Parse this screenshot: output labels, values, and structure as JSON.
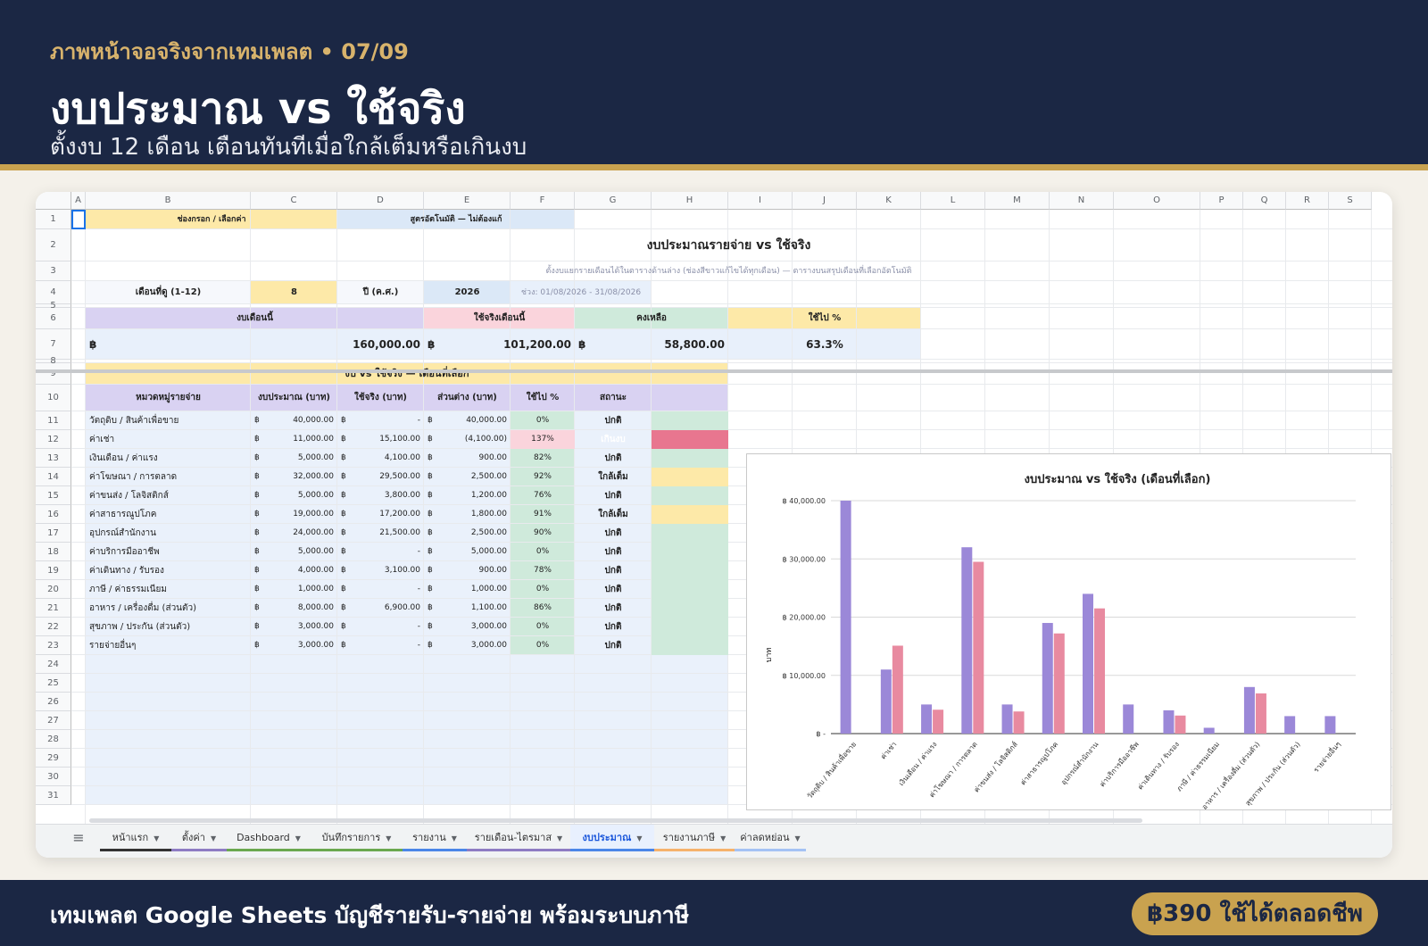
{
  "banner": {
    "subtitle": "ภาพหน้าจอจริงจากเทมเพลต  •  07/09",
    "title": "งบประมาณ vs ใช้จริง",
    "description": "ตั้งงบ 12 เดือน เตือนทันทีเมื่อใกล้เต็มหรือเกินงบ"
  },
  "footer": {
    "text": "เทมเพลต Google Sheets บัญชีรายรับ-รายจ่าย พร้อมระบบภาษี",
    "price": "฿390 ใช้ได้ตลอดชีพ"
  },
  "sheet": {
    "col_headers": [
      "A",
      "B",
      "C",
      "D",
      "E",
      "F",
      "G",
      "H",
      "I",
      "J",
      "K",
      "L",
      "M",
      "N",
      "O",
      "P",
      "Q",
      "R",
      "S"
    ],
    "row_numbers": [
      "1",
      "2",
      "3",
      "4",
      "5",
      "6",
      "7",
      "8",
      "9",
      "10",
      "11",
      "12",
      "13",
      "14",
      "15",
      "16",
      "17",
      "18",
      "19",
      "20",
      "21",
      "22",
      "23",
      "24",
      "25",
      "26",
      "27",
      "28",
      "29",
      "30",
      "31"
    ],
    "legend_input": "ช่องกรอก / เลือกค่า",
    "legend_formula": "สูตรอัตโนมัติ — ไม่ต้องแก้",
    "title": "งบประมาณรายจ่าย vs ใช้จริง",
    "note": "ตั้งงบแยกรายเดือนได้ในตารางด้านล่าง (ช่องสีขาวแก้ไขได้ทุกเดือน) — ตารางบนสรุปเดือนที่เลือกอัตโนมัติ",
    "month_label": "เดือนที่ดู (1-12)",
    "month_value": "8",
    "year_label": "ปี (ค.ศ.)",
    "year_value": "2026",
    "range_text": "ช่วง: 01/08/2026 - 31/08/2026",
    "summary": {
      "budget_label": "งบเดือนนี้",
      "spent_label": "ใช้จริงเดือนนี้",
      "remain_label": "คงเหลือ",
      "pct_label": "ใช้ไป %",
      "currency": "฿",
      "budget_value": "160,000.00",
      "spent_value": "101,200.00",
      "remain_value": "58,800.00",
      "pct_value": "63.3%"
    },
    "table": {
      "title": "งบ vs ใช้จริง — เดือนที่เลือก",
      "headers": [
        "หมวดหมู่รายจ่าย",
        "งบประมาณ (บาท)",
        "ใช้จริง (บาท)",
        "ส่วนต่าง (บาท)",
        "ใช้ไป %",
        "สถานะ"
      ],
      "rows": [
        {
          "cat": "วัตถุดิบ / สินค้าเพื่อขาย",
          "budget": "40,000.00",
          "actual": "-",
          "diff": "40,000.00",
          "pct": "0%",
          "status": "ปกติ"
        },
        {
          "cat": "ค่าเช่า",
          "budget": "11,000.00",
          "actual": "15,100.00",
          "diff": "(4,100.00)",
          "pct": "137%",
          "status": "เกินงบ"
        },
        {
          "cat": "เงินเดือน / ค่าแรง",
          "budget": "5,000.00",
          "actual": "4,100.00",
          "diff": "900.00",
          "pct": "82%",
          "status": "ปกติ"
        },
        {
          "cat": "ค่าโฆษณา / การตลาด",
          "budget": "32,000.00",
          "actual": "29,500.00",
          "diff": "2,500.00",
          "pct": "92%",
          "status": "ใกล้เต็ม"
        },
        {
          "cat": "ค่าขนส่ง / โลจิสติกส์",
          "budget": "5,000.00",
          "actual": "3,800.00",
          "diff": "1,200.00",
          "pct": "76%",
          "status": "ปกติ"
        },
        {
          "cat": "ค่าสาธารณูปโภค",
          "budget": "19,000.00",
          "actual": "17,200.00",
          "diff": "1,800.00",
          "pct": "91%",
          "status": "ใกล้เต็ม"
        },
        {
          "cat": "อุปกรณ์สำนักงาน",
          "budget": "24,000.00",
          "actual": "21,500.00",
          "diff": "2,500.00",
          "pct": "90%",
          "status": "ปกติ"
        },
        {
          "cat": "ค่าบริการมืออาชีพ",
          "budget": "5,000.00",
          "actual": "-",
          "diff": "5,000.00",
          "pct": "0%",
          "status": "ปกติ"
        },
        {
          "cat": "ค่าเดินทาง / รับรอง",
          "budget": "4,000.00",
          "actual": "3,100.00",
          "diff": "900.00",
          "pct": "78%",
          "status": "ปกติ"
        },
        {
          "cat": "ภาษี / ค่าธรรมเนียม",
          "budget": "1,000.00",
          "actual": "-",
          "diff": "1,000.00",
          "pct": "0%",
          "status": "ปกติ"
        },
        {
          "cat": "อาหาร / เครื่องดื่ม (ส่วนตัว)",
          "budget": "8,000.00",
          "actual": "6,900.00",
          "diff": "1,100.00",
          "pct": "86%",
          "status": "ปกติ"
        },
        {
          "cat": "สุขภาพ / ประกัน (ส่วนตัว)",
          "budget": "3,000.00",
          "actual": "-",
          "diff": "3,000.00",
          "pct": "0%",
          "status": "ปกติ"
        },
        {
          "cat": "รายจ่ายอื่นๆ",
          "budget": "3,000.00",
          "actual": "-",
          "diff": "3,000.00",
          "pct": "0%",
          "status": "ปกติ"
        }
      ]
    }
  },
  "colors": {
    "budget": "#9b88d8",
    "actual": "#e88aa0",
    "ok_bg": "#cfeadb",
    "near_bg": "#fde9a8",
    "over_bg": "#e8768f"
  },
  "chart_data": {
    "type": "bar",
    "title": "งบประมาณ vs ใช้จริง (เดือนที่เลือก)",
    "ylabel": "บาท",
    "ylim": [
      0,
      40000
    ],
    "yticks": [
      "฿ -",
      "฿ 10,000.00",
      "฿ 20,000.00",
      "฿ 30,000.00",
      "฿ 40,000.00"
    ],
    "categories": [
      "วัตถุดิบ / สินค้าเพื่อขาย",
      "ค่าเช่า",
      "เงินเดือน / ค่าแรง",
      "ค่าโฆษณา / การตลาด",
      "ค่าขนส่ง / โลจิสติกส์",
      "ค่าสาธารณูปโภค",
      "อุปกรณ์สำนักงาน",
      "ค่าบริการมืออาชีพ",
      "ค่าเดินทาง / รับรอง",
      "ภาษี / ค่าธรรมเนียม",
      "อาหาร / เครื่องดื่ม (ส่วนตัว)",
      "สุขภาพ / ประกัน (ส่วนตัว)",
      "รายจ่ายอื่นๆ"
    ],
    "series": [
      {
        "values": [
          40000,
          11000,
          5000,
          32000,
          5000,
          19000,
          24000,
          5000,
          4000,
          1000,
          8000,
          3000,
          3000
        ]
      },
      {
        "values": [
          0,
          15100,
          4100,
          29500,
          3800,
          17200,
          21500,
          0,
          3100,
          0,
          6900,
          0,
          0
        ]
      }
    ]
  },
  "tabs": [
    {
      "label": "หน้าแรก",
      "color": "#333333"
    },
    {
      "label": "ตั้งค่า",
      "color": "#8e7cc3"
    },
    {
      "label": "Dashboard",
      "color": "#6aa84f"
    },
    {
      "label": "บันทึกรายการ",
      "color": "#6aa84f"
    },
    {
      "label": "รายงาน",
      "color": "#4a86e8"
    },
    {
      "label": "รายเดือน-ไตรมาส",
      "color": "#8e7cc3"
    },
    {
      "label": "งบประมาณ",
      "color": "#4a86e8",
      "active": true
    },
    {
      "label": "รายงานภาษี",
      "color": "#f6b26b"
    },
    {
      "label": "ค่าลดหย่อน",
      "color": "#a4c2f4"
    }
  ]
}
